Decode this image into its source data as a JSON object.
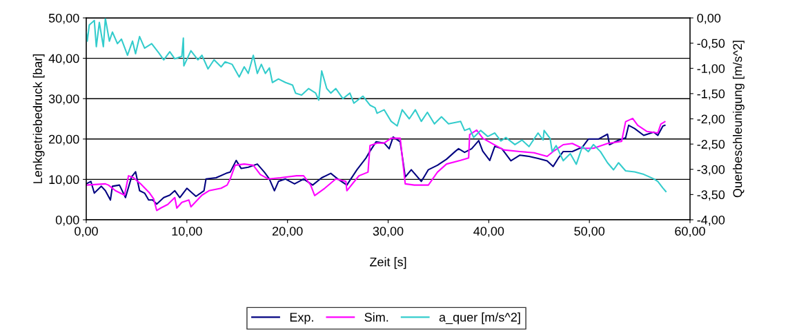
{
  "chart_data": {
    "type": "line",
    "xlabel": "Zeit [s]",
    "ylabel": "Lenkgetriebedruck [bar]",
    "y2label": "Querbeschleunigung [m/s^2]",
    "xlim": [
      0,
      60
    ],
    "xticks": [
      {
        "value": 0,
        "label": "0,00"
      },
      {
        "value": 10,
        "label": "10,00"
      },
      {
        "value": 20,
        "label": "20,00"
      },
      {
        "value": 30,
        "label": "30,00"
      },
      {
        "value": 40,
        "label": "40,00"
      },
      {
        "value": 50,
        "label": "50,00"
      },
      {
        "value": 60,
        "label": "60,00"
      }
    ],
    "ylim": [
      0,
      50
    ],
    "yticks": [
      {
        "value": 0,
        "label": "0,00"
      },
      {
        "value": 10,
        "label": "10,00"
      },
      {
        "value": 20,
        "label": "20,00"
      },
      {
        "value": 30,
        "label": "30,00"
      },
      {
        "value": 40,
        "label": "40,00"
      },
      {
        "value": 50,
        "label": "50,00"
      }
    ],
    "y2lim": [
      -4,
      0
    ],
    "y2ticks": [
      {
        "value": 0,
        "label": "0,00"
      },
      {
        "value": -0.5,
        "label": "-0,50"
      },
      {
        "value": -1,
        "label": "-1,00"
      },
      {
        "value": -1.5,
        "label": "-1,50"
      },
      {
        "value": -2,
        "label": "-2,00"
      },
      {
        "value": -2.5,
        "label": "-2,50"
      },
      {
        "value": -3,
        "label": "-3,00"
      },
      {
        "value": -3.5,
        "label": "-3,50"
      },
      {
        "value": -4,
        "label": "-4,00"
      }
    ],
    "grid": "y",
    "legend": "bottom",
    "line_style": "solid",
    "marker": "none",
    "series": [
      {
        "name": "Exp.",
        "color": "#000080",
        "x": [
          0,
          0.46,
          0.8,
          1.5,
          1.9,
          2.4,
          2.6,
          3.3,
          3.9,
          4.5,
          4.9,
          5.3,
          5.8,
          6.2,
          6.6,
          7.0,
          7.7,
          8.3,
          8.8,
          9.3,
          10.0,
          10.9,
          11.7,
          11.9,
          12.9,
          13.9,
          14.3,
          14.9,
          15.4,
          16.1,
          17.0,
          17.7,
          18.2,
          18.7,
          19.1,
          19.8,
          20.7,
          21.6,
          22.5,
          23.4,
          24.3,
          25.0,
          25.9,
          26.9,
          27.8,
          28.2,
          28.8,
          29.6,
          30.1,
          30.5,
          31.2,
          31.7,
          32.3,
          33.3,
          34.0,
          34.9,
          35.8,
          36.7,
          37.0,
          37.6,
          38.3,
          39.0,
          39.4,
          40.1,
          40.6,
          41.3,
          42.2,
          43.1,
          44.0,
          44.9,
          45.8,
          46.4,
          46.9,
          47.4,
          48.3,
          49.3,
          49.9,
          50.9,
          51.8,
          52.0,
          52.9,
          53.6,
          53.9,
          54.5,
          55.4,
          56.4,
          56.8,
          57.3,
          57.5
        ],
        "values": [
          8.9,
          9.5,
          6.6,
          8.3,
          7.2,
          4.9,
          8.3,
          8.6,
          5.5,
          10.6,
          11.9,
          7.2,
          6.6,
          4.9,
          4.9,
          3.9,
          5.5,
          6.1,
          7.2,
          5.5,
          7.8,
          5.8,
          7.2,
          10.1,
          10.4,
          11.5,
          11.8,
          14.7,
          12.7,
          13.0,
          13.8,
          11.8,
          10.1,
          7.2,
          9.5,
          10.1,
          8.9,
          10.1,
          8.6,
          10.4,
          11.5,
          10.1,
          8.6,
          12.4,
          15.3,
          17.0,
          19.3,
          19.0,
          17.6,
          20.5,
          19.3,
          10.6,
          12.4,
          9.5,
          12.4,
          13.5,
          15.0,
          17.0,
          17.6,
          16.7,
          17.6,
          19.6,
          17.0,
          14.7,
          18.2,
          17.6,
          14.6,
          16.0,
          15.7,
          15.2,
          14.6,
          13.2,
          15.2,
          16.9,
          16.9,
          18.0,
          20.0,
          20.0,
          21.2,
          18.6,
          19.7,
          20.3,
          23.4,
          22.6,
          20.9,
          21.7,
          20.9,
          23.2,
          23.4
        ]
      },
      {
        "name": "Sim.",
        "color": "#ff00ff",
        "x": [
          0,
          1.9,
          2.2,
          2.9,
          3.8,
          4.2,
          4.7,
          5.4,
          6.3,
          6.7,
          7.0,
          7.4,
          8.1,
          8.8,
          9.0,
          9.5,
          10.2,
          10.4,
          11.5,
          12.2,
          13.4,
          14.0,
          14.3,
          14.8,
          15.7,
          16.6,
          17.3,
          18.1,
          19.3,
          20.9,
          21.6,
          22.3,
          22.7,
          23.7,
          24.8,
          25.8,
          25.9,
          27.1,
          28.0,
          28.2,
          28.9,
          29.6,
          30.3,
          31.2,
          31.7,
          32.6,
          34.0,
          34.9,
          35.8,
          37.2,
          38.0,
          38.1,
          38.8,
          39.4,
          40.4,
          41.5,
          43.1,
          44.5,
          45.8,
          46.5,
          47.4,
          48.3,
          49.3,
          50.4,
          51.8,
          53.2,
          53.6,
          54.3,
          54.8,
          55.7,
          56.8,
          57.1,
          57.5
        ],
        "values": [
          8.6,
          8.9,
          8.6,
          7.2,
          6.1,
          10.9,
          10.4,
          8.9,
          6.6,
          5.2,
          2.3,
          2.9,
          3.8,
          5.5,
          2.9,
          4.3,
          4.9,
          3.2,
          6.1,
          7.2,
          7.8,
          8.6,
          10.1,
          13.5,
          13.8,
          13.5,
          11.2,
          10.1,
          10.4,
          10.9,
          10.9,
          8.6,
          6.0,
          7.8,
          10.1,
          9.5,
          7.2,
          10.9,
          11.8,
          18.4,
          19.0,
          19.0,
          20.2,
          20.2,
          8.9,
          8.6,
          8.6,
          11.8,
          13.8,
          14.7,
          15.3,
          21.1,
          22.2,
          20.2,
          18.8,
          17.3,
          16.9,
          16.6,
          15.7,
          17.1,
          18.6,
          18.9,
          17.7,
          17.7,
          18.9,
          19.4,
          24.3,
          25.1,
          23.4,
          21.9,
          21.5,
          23.7,
          24.3
        ]
      },
      {
        "name": "a_quer [m/s^2]",
        "color": "#33cccc",
        "axis": "y2",
        "x": [
          0,
          0.1,
          0.3,
          0.8,
          1.0,
          1.3,
          1.7,
          1.9,
          2.3,
          2.6,
          3.1,
          3.5,
          4.1,
          4.6,
          4.9,
          5.3,
          5.8,
          6.5,
          7.2,
          7.7,
          8.3,
          8.8,
          9.5,
          9.65,
          9.7,
          10.4,
          11.1,
          11.5,
          12.1,
          12.7,
          13.4,
          13.8,
          14.5,
          15.2,
          15.7,
          16.1,
          16.6,
          17.0,
          17.4,
          17.8,
          18.2,
          18.5,
          19.1,
          19.8,
          20.5,
          20.8,
          21.4,
          22.1,
          22.8,
          23.1,
          23.4,
          23.9,
          24.3,
          24.8,
          25.5,
          26.2,
          26.6,
          27.5,
          28.2,
          28.7,
          28.9,
          29.6,
          30.3,
          30.9,
          31.4,
          32.1,
          32.7,
          33.3,
          33.9,
          34.6,
          35.3,
          36.0,
          37.2,
          37.6,
          38.1,
          38.5,
          39.2,
          39.9,
          40.6,
          41.2,
          41.7,
          42.6,
          43.3,
          44.0,
          44.9,
          45.4,
          45.5,
          46.1,
          46.3,
          46.7,
          47.4,
          48.1,
          48.7,
          49.3,
          49.9,
          50.4,
          51.1,
          51.8,
          52.4,
          52.9,
          53.6,
          54.5,
          55.4,
          56.4,
          56.8,
          57.3,
          57.6
        ],
        "values": [
          -0.28,
          -0.46,
          -0.14,
          -0.05,
          -0.57,
          -0.09,
          -0.57,
          -0.01,
          -0.46,
          -0.28,
          -0.51,
          -0.42,
          -0.74,
          -0.46,
          -0.71,
          -0.37,
          -0.6,
          -0.51,
          -0.69,
          -0.83,
          -0.67,
          -0.81,
          -0.76,
          -0.4,
          -0.95,
          -0.65,
          -0.83,
          -0.74,
          -1.01,
          -0.83,
          -0.97,
          -0.87,
          -0.92,
          -1.17,
          -0.97,
          -1.1,
          -0.74,
          -1.1,
          -0.92,
          -1.1,
          -0.99,
          -1.28,
          -1.21,
          -1.28,
          -1.33,
          -1.49,
          -1.53,
          -1.4,
          -1.49,
          -1.63,
          -1.05,
          -1.4,
          -1.49,
          -1.4,
          -1.6,
          -1.49,
          -1.69,
          -1.55,
          -1.73,
          -1.78,
          -1.89,
          -1.82,
          -2.05,
          -2.14,
          -1.82,
          -2.0,
          -1.82,
          -2.05,
          -1.87,
          -2.1,
          -1.96,
          -2.1,
          -2.05,
          -2.23,
          -2.19,
          -2.37,
          -2.23,
          -2.35,
          -2.28,
          -2.44,
          -2.37,
          -2.51,
          -2.42,
          -2.55,
          -2.28,
          -2.42,
          -2.23,
          -2.39,
          -2.65,
          -2.53,
          -2.83,
          -2.69,
          -2.9,
          -2.55,
          -2.65,
          -2.51,
          -2.65,
          -2.87,
          -3.01,
          -2.87,
          -3.03,
          -3.05,
          -3.1,
          -3.19,
          -3.24,
          -3.37,
          -3.44
        ]
      }
    ]
  }
}
